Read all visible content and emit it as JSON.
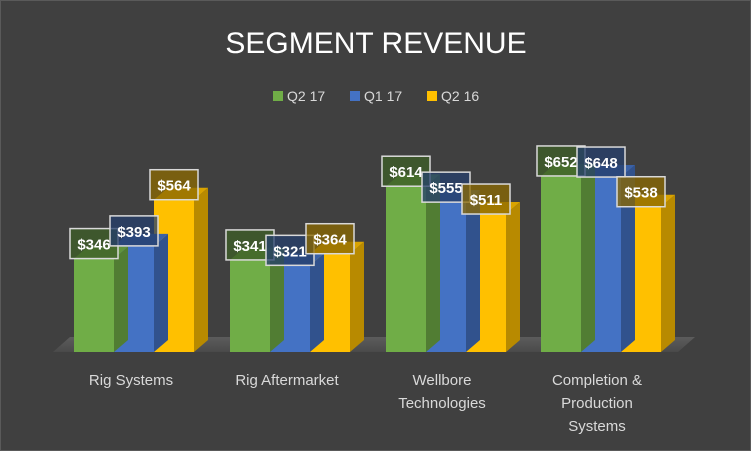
{
  "chart_data": {
    "type": "bar",
    "title": "SEGMENT REVENUE",
    "categories": [
      [
        "Rig Systems"
      ],
      [
        "Rig Aftermarket"
      ],
      [
        "Wellbore",
        "Technologies"
      ],
      [
        "Completion &",
        "Production",
        "Systems"
      ]
    ],
    "series": [
      {
        "name": "Q2 17",
        "color": "#70ad47",
        "values": [
          346,
          341,
          614,
          652
        ],
        "labels": [
          "$346",
          "$341",
          "$614",
          "$652"
        ]
      },
      {
        "name": "Q1 17",
        "color": "#4472c4",
        "values": [
          393,
          321,
          555,
          648
        ],
        "labels": [
          "$393",
          "$321",
          "$555",
          "$648"
        ]
      },
      {
        "name": "Q2 16",
        "color": "#ffc000",
        "values": [
          564,
          364,
          511,
          538
        ],
        "labels": [
          "$564",
          "$364",
          "$511",
          "$538"
        ]
      }
    ],
    "legend_position": "top",
    "grid": false,
    "style": "3d-column"
  }
}
